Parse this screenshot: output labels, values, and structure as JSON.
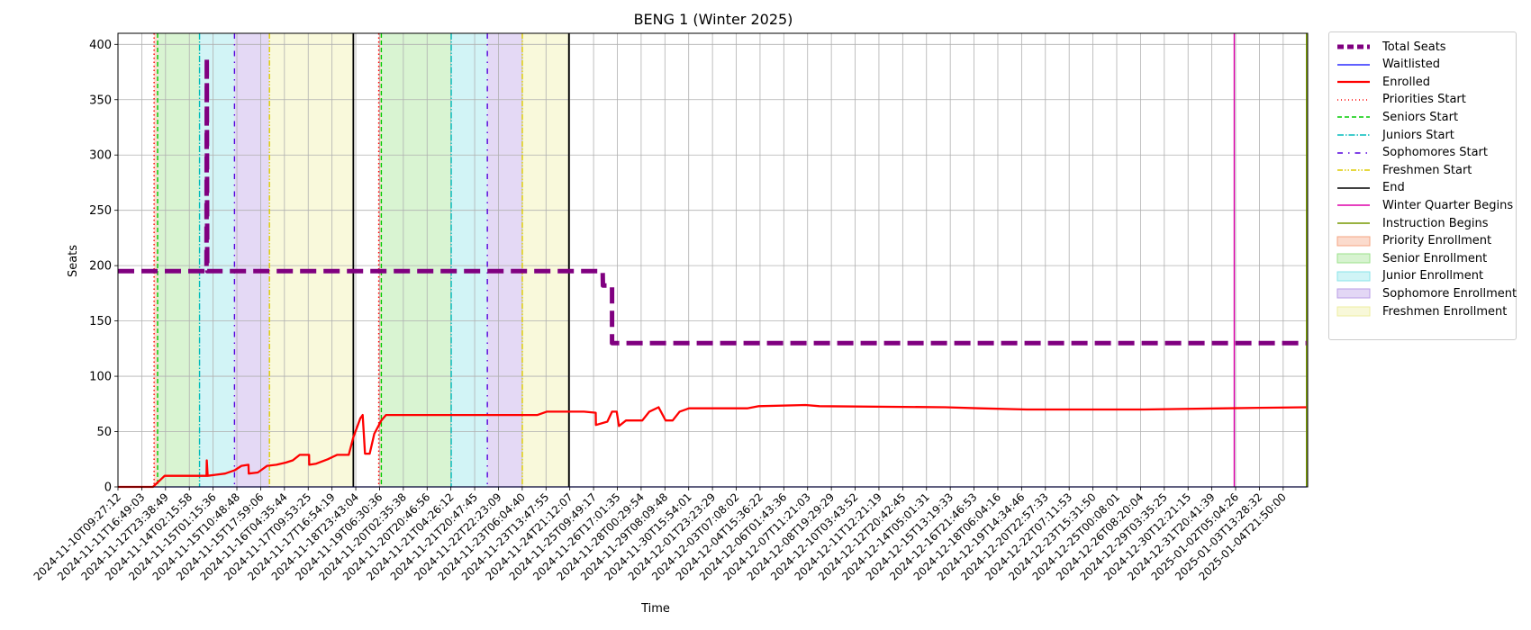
{
  "chart_data": {
    "type": "line",
    "title": "BENG 1 (Winter 2025)",
    "xlabel": "Time",
    "ylabel": "Seats",
    "x_range": [
      "2024-11-10T09:27:12",
      "2025-01-06T00:00:00"
    ],
    "ylim": [
      0,
      410
    ],
    "y_ticks": [
      0,
      50,
      100,
      150,
      200,
      250,
      300,
      350,
      400
    ],
    "grid": true,
    "legend_position": "outside-right",
    "x_tick_labels": [
      "2024-11-10T09:27:12",
      "2024-11-11T16:49:03",
      "2024-11-12T23:38:49",
      "2024-11-14T02:15:58",
      "2024-11-15T01:15:36",
      "2024-11-15T10:48:48",
      "2024-11-15T17:59:06",
      "2024-11-16T04:35:44",
      "2024-11-17T09:53:25",
      "2024-11-17T16:54:19",
      "2024-11-18T23:43:04",
      "2024-11-19T06:30:36",
      "2024-11-20T02:35:38",
      "2024-11-20T20:46:56",
      "2024-11-21T04:26:12",
      "2024-11-21T20:47:45",
      "2024-11-22T22:23:09",
      "2024-11-23T06:04:40",
      "2024-11-23T13:47:55",
      "2024-11-24T21:12:07",
      "2024-11-25T09:49:17",
      "2024-11-26T17:01:35",
      "2024-11-28T00:29:54",
      "2024-11-29T08:09:48",
      "2024-11-30T15:54:01",
      "2024-12-01T23:23:29",
      "2024-12-03T07:08:02",
      "2024-12-04T15:36:22",
      "2024-12-06T01:43:36",
      "2024-12-07T11:21:03",
      "2024-12-08T19:29:29",
      "2024-12-10T03:43:52",
      "2024-12-11T12:21:19",
      "2024-12-12T20:42:45",
      "2024-12-14T05:01:31",
      "2024-12-15T13:19:33",
      "2024-12-16T21:46:53",
      "2024-12-18T06:04:16",
      "2024-12-19T14:34:46",
      "2024-12-20T22:57:33",
      "2024-12-22T07:11:53",
      "2024-12-23T15:31:50",
      "2024-12-25T00:08:01",
      "2024-12-26T08:20:04",
      "2024-12-29T03:35:25",
      "2024-12-30T12:21:15",
      "2024-12-31T20:41:39",
      "2025-01-02T05:04:26",
      "2025-01-03T13:28:32",
      "2025-01-04T21:50:00"
    ],
    "series": [
      {
        "name": "Total Seats",
        "color": "#800080",
        "style": "dashed",
        "points": [
          [
            0,
            195
          ],
          [
            3.8,
            195
          ],
          [
            3.8,
            195.5
          ],
          [
            3.81,
            388
          ],
          [
            3.83,
            195
          ],
          [
            20.3,
            195
          ],
          [
            20.8,
            195
          ],
          [
            20.81,
            182
          ],
          [
            21.2,
            182
          ],
          [
            21.2,
            130
          ],
          [
            51.0,
            130
          ]
        ]
      },
      {
        "name": "Waitlisted",
        "color": "#0000ff",
        "style": "solid",
        "points": [
          [
            0,
            0
          ],
          [
            51.0,
            0
          ]
        ]
      },
      {
        "name": "Enrolled",
        "color": "#ff0000",
        "style": "solid",
        "points": [
          [
            0,
            0
          ],
          [
            1.5,
            0
          ],
          [
            1.9,
            8
          ],
          [
            2.0,
            10
          ],
          [
            3.8,
            10
          ],
          [
            3.81,
            24
          ],
          [
            3.85,
            10
          ],
          [
            4.2,
            11
          ],
          [
            4.6,
            12
          ],
          [
            5.0,
            15
          ],
          [
            5.3,
            19
          ],
          [
            5.6,
            20
          ],
          [
            5.61,
            12
          ],
          [
            6.0,
            13
          ],
          [
            6.4,
            19
          ],
          [
            6.8,
            20
          ],
          [
            7.2,
            22
          ],
          [
            7.5,
            24
          ],
          [
            7.8,
            29
          ],
          [
            8.2,
            29
          ],
          [
            8.21,
            20
          ],
          [
            8.5,
            21
          ],
          [
            9.0,
            25
          ],
          [
            9.4,
            29
          ],
          [
            9.9,
            29
          ],
          [
            10.1,
            45
          ],
          [
            10.4,
            62
          ],
          [
            10.5,
            65
          ],
          [
            10.6,
            30
          ],
          [
            10.8,
            30
          ],
          [
            11.0,
            48
          ],
          [
            11.3,
            60
          ],
          [
            11.5,
            65
          ],
          [
            18.0,
            65
          ],
          [
            18.4,
            68
          ],
          [
            20.0,
            68
          ],
          [
            20.5,
            67
          ],
          [
            20.51,
            56
          ],
          [
            21.0,
            59
          ],
          [
            21.2,
            68
          ],
          [
            21.4,
            68
          ],
          [
            21.5,
            55
          ],
          [
            21.8,
            60
          ],
          [
            22.5,
            60
          ],
          [
            22.8,
            68
          ],
          [
            23.2,
            72
          ],
          [
            23.5,
            60
          ],
          [
            23.8,
            60
          ],
          [
            24.1,
            68
          ],
          [
            24.5,
            71
          ],
          [
            27.0,
            71
          ],
          [
            27.5,
            73
          ],
          [
            29.5,
            74
          ],
          [
            30.1,
            73
          ],
          [
            35.5,
            72
          ],
          [
            37.0,
            71
          ],
          [
            39.0,
            70
          ],
          [
            44.0,
            70
          ],
          [
            47.5,
            71
          ],
          [
            49.0,
            71.5
          ],
          [
            51.0,
            72
          ]
        ]
      }
    ],
    "vertical_lines": [
      {
        "name": "Priorities Start",
        "color": "#ff0000",
        "style": "dotted",
        "x": [
          1.55,
          11.19
        ]
      },
      {
        "name": "Seniors Start",
        "color": "#00cc00",
        "style": "dashed",
        "x": [
          1.7,
          11.3
        ]
      },
      {
        "name": "Juniors Start",
        "color": "#00bbbb",
        "style": "dashdot",
        "x": [
          3.5,
          14.3
        ]
      },
      {
        "name": "Sophomores Start",
        "color": "#5500dd",
        "style": "loosely-dashdotted",
        "x": [
          5.0,
          15.85
        ]
      },
      {
        "name": "Freshmen Start",
        "color": "#ddcc00",
        "style": "dashdotdot",
        "x": [
          6.5,
          17.35
        ]
      },
      {
        "name": "End",
        "color": "#000000",
        "style": "solid",
        "x": [
          10.1,
          19.35
        ]
      },
      {
        "name": "Winter Quarter Begins",
        "color": "#dd00aa",
        "style": "solid",
        "x": [
          47.9
        ]
      },
      {
        "name": "Instruction Begins",
        "color": "#779900",
        "style": "solid",
        "x": [
          51.0
        ]
      }
    ],
    "enrollment_periods": [
      {
        "name": "Priority Enrollment",
        "color": "#f4a582",
        "spans": [
          [
            1.55,
            1.7
          ],
          [
            11.19,
            11.3
          ]
        ]
      },
      {
        "name": "Senior Enrollment",
        "color": "#9be28a",
        "spans": [
          [
            1.7,
            3.5
          ],
          [
            11.3,
            14.3
          ]
        ]
      },
      {
        "name": "Junior Enrollment",
        "color": "#89e3e8",
        "spans": [
          [
            3.5,
            5.0
          ],
          [
            14.3,
            15.85
          ]
        ]
      },
      {
        "name": "Sophomore Enrollment",
        "color": "#b89ce6",
        "spans": [
          [
            5.0,
            6.5
          ],
          [
            15.85,
            17.35
          ]
        ]
      },
      {
        "name": "Freshmen Enrollment",
        "color": "#eeeea0",
        "spans": [
          [
            6.5,
            10.1
          ],
          [
            17.35,
            19.35
          ]
        ]
      }
    ],
    "legend": [
      {
        "label": "Total Seats",
        "kind": "line",
        "color": "#800080",
        "dash": "7,4",
        "width": 5
      },
      {
        "label": "Waitlisted",
        "kind": "line",
        "color": "#0000ff",
        "dash": "",
        "width": 1.2
      },
      {
        "label": "Enrolled",
        "kind": "line",
        "color": "#ff0000",
        "dash": "",
        "width": 2.2
      },
      {
        "label": "Priorities Start",
        "kind": "line",
        "color": "#ff0000",
        "dash": "1,3",
        "width": 1.5
      },
      {
        "label": "Seniors Start",
        "kind": "line",
        "color": "#00cc00",
        "dash": "5,3",
        "width": 1.5
      },
      {
        "label": "Juniors Start",
        "kind": "line",
        "color": "#00bbbb",
        "dash": "7,2,1.5,2",
        "width": 1.5
      },
      {
        "label": "Sophomores Start",
        "kind": "line",
        "color": "#5500dd",
        "dash": "6,6,1.5,6",
        "width": 1.5
      },
      {
        "label": "Freshmen Start",
        "kind": "line",
        "color": "#ddcc00",
        "dash": "6,2,1.5,2,1.5,2",
        "width": 1.5
      },
      {
        "label": "End",
        "kind": "line",
        "color": "#000000",
        "dash": "",
        "width": 1.5
      },
      {
        "label": "Winter Quarter Begins",
        "kind": "line",
        "color": "#dd00aa",
        "dash": "",
        "width": 1.5
      },
      {
        "label": "Instruction Begins",
        "kind": "line",
        "color": "#779900",
        "dash": "",
        "width": 1.5
      },
      {
        "label": "Priority Enrollment",
        "kind": "patch",
        "color": "#f4a582"
      },
      {
        "label": "Senior Enrollment",
        "kind": "patch",
        "color": "#9be28a"
      },
      {
        "label": "Junior Enrollment",
        "kind": "patch",
        "color": "#89e3e8"
      },
      {
        "label": "Sophomore Enrollment",
        "kind": "patch",
        "color": "#b89ce6"
      },
      {
        "label": "Freshmen Enrollment",
        "kind": "patch",
        "color": "#eeeea0"
      }
    ]
  }
}
